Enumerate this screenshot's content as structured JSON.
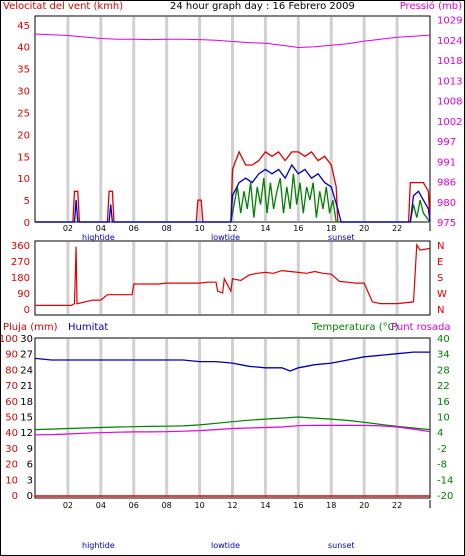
{
  "header": {
    "wind_label": "Velocitat del vent (kmh)",
    "title": "24 hour graph day : 16 Febrero 2009",
    "pressure_label": "Pressió (mb)"
  },
  "bottom_header": {
    "rain_label": "Pluja (mm)",
    "humidity_label": "Humitat",
    "temp_label": "Temperatura (°C)",
    "dew_label": "Punt rosada"
  },
  "hour_ticks": [
    "02",
    "04",
    "06",
    "08",
    "10",
    "12",
    "14",
    "16",
    "18",
    "20",
    "22"
  ],
  "markers": {
    "hightide": "hightide",
    "lowtide": "lowtide",
    "sunset": "sunset"
  },
  "colors": {
    "wind": "#e00000",
    "gust": "#0000c0",
    "avg": "#008000",
    "pressure": "#e000e0",
    "humidity": "#0000b0",
    "temperature": "#008000",
    "dew": "#e000e0",
    "rain": "#e00000"
  },
  "chart_data": [
    {
      "type": "line",
      "name": "wind-pressure",
      "x_range": [
        0,
        24
      ],
      "y_left": {
        "ticks": [
          "0",
          "5",
          "10",
          "15",
          "20",
          "25",
          "30",
          "35",
          "40",
          "45"
        ],
        "range": [
          0,
          47
        ]
      },
      "y_right": {
        "ticks": [
          "975",
          "980",
          "986",
          "991",
          "997",
          "1002",
          "1008",
          "1013",
          "1018",
          "1024",
          "1029"
        ],
        "range": [
          975,
          1030
        ]
      },
      "series": [
        {
          "key": "pressure",
          "x": [
            0,
            1,
            2,
            3,
            4,
            5,
            6,
            7,
            8,
            9,
            10,
            11,
            12,
            13,
            14,
            15,
            16,
            17,
            18,
            19,
            20,
            21,
            22,
            23,
            24
          ],
          "y": [
            1025.2,
            1025,
            1024.8,
            1024.4,
            1024,
            1023.8,
            1023.8,
            1023.7,
            1023.8,
            1023.8,
            1023.7,
            1023.5,
            1023.2,
            1022.9,
            1022.7,
            1022.2,
            1021.6,
            1021.8,
            1022.2,
            1022.6,
            1023.3,
            1023.8,
            1024.3,
            1024.6,
            1024.9
          ]
        },
        {
          "key": "wind",
          "x": [
            0,
            2.3,
            2.4,
            2.6,
            2.7,
            4.4,
            4.5,
            4.7,
            4.8,
            9.8,
            9.9,
            10.1,
            10.2,
            11.9,
            12.0,
            12.4,
            12.8,
            13.2,
            13.6,
            14.0,
            14.4,
            14.8,
            15.2,
            15.6,
            16.0,
            16.4,
            16.8,
            17.2,
            17.6,
            18.0,
            18.3,
            18.4,
            22.7,
            22.8,
            23.2,
            23.6,
            23.9,
            24
          ],
          "y": [
            0,
            0,
            7,
            7,
            0,
            0,
            7,
            7,
            0,
            0,
            5,
            5,
            0,
            0,
            12,
            16,
            13,
            13,
            14,
            16,
            15,
            16,
            14,
            16,
            16,
            15,
            16,
            14,
            15,
            13,
            8,
            0,
            0,
            9,
            9,
            9,
            7,
            0
          ]
        },
        {
          "key": "gust",
          "x": [
            0,
            2.4,
            2.5,
            2.6,
            4.5,
            4.6,
            4.7,
            11.9,
            12.0,
            12.4,
            12.8,
            13.2,
            13.6,
            14.0,
            14.4,
            14.8,
            15.2,
            15.6,
            16.0,
            16.4,
            16.8,
            17.2,
            17.6,
            18.0,
            18.4,
            18.6,
            22.8,
            23.0,
            23.3,
            23.6,
            23.9,
            24
          ],
          "y": [
            0,
            0,
            5,
            0,
            0,
            4,
            0,
            0,
            6,
            9,
            10,
            9,
            11,
            12,
            11,
            12,
            10,
            13,
            11,
            12,
            10,
            11,
            9,
            8,
            3,
            0,
            0,
            6,
            7,
            5,
            3,
            0
          ]
        },
        {
          "key": "avg",
          "x": [
            0,
            11.9,
            12.1,
            12.3,
            12.5,
            12.7,
            12.9,
            13.1,
            13.3,
            13.5,
            13.7,
            13.9,
            14.1,
            14.3,
            14.5,
            14.7,
            14.9,
            15.1,
            15.3,
            15.5,
            15.7,
            15.9,
            16.1,
            16.3,
            16.5,
            16.7,
            16.9,
            17.1,
            17.3,
            17.5,
            17.7,
            17.9,
            18.1,
            18.3,
            22.8,
            23.0,
            23.2,
            23.4,
            23.6,
            24
          ],
          "y": [
            0,
            0,
            4,
            8,
            2,
            7,
            3,
            9,
            1,
            8,
            4,
            10,
            2,
            9,
            3,
            7,
            10,
            2,
            8,
            3,
            11,
            4,
            9,
            2,
            8,
            5,
            9,
            1,
            7,
            3,
            8,
            2,
            5,
            0,
            0,
            4,
            1,
            5,
            2,
            0
          ]
        }
      ]
    },
    {
      "type": "line",
      "name": "wind-direction",
      "x_range": [
        0,
        24
      ],
      "y_left": {
        "ticks": [
          "0",
          "90",
          "180",
          "270",
          "360"
        ],
        "range": [
          0,
          370
        ]
      },
      "y_right": {
        "ticks": [
          "N",
          "W",
          "S",
          "E",
          "N"
        ]
      },
      "series": [
        {
          "key": "direction",
          "x": [
            0,
            2.2,
            2.4,
            2.5,
            2.55,
            2.6,
            3.5,
            4.0,
            4.4,
            5.5,
            5.9,
            6.0,
            7.5,
            8.0,
            9.6,
            10.0,
            10.5,
            11.0,
            11.1,
            11.4,
            11.5,
            11.9,
            12.0,
            12.5,
            13.0,
            13.5,
            14.0,
            14.5,
            15.0,
            15.5,
            16.0,
            16.5,
            17.0,
            17.5,
            18.0,
            18.5,
            19.0,
            19.5,
            20.0,
            20.5,
            21.0,
            22.0,
            23.0,
            23.2,
            23.4,
            24
          ],
          "y": [
            20,
            20,
            30,
            350,
            30,
            30,
            50,
            50,
            80,
            80,
            80,
            140,
            140,
            145,
            145,
            145,
            150,
            150,
            100,
            90,
            170,
            100,
            170,
            160,
            190,
            200,
            205,
            200,
            215,
            210,
            205,
            200,
            210,
            200,
            195,
            155,
            150,
            145,
            145,
            40,
            30,
            30,
            40,
            360,
            330,
            340
          ]
        }
      ]
    },
    {
      "type": "line",
      "name": "rain-humidity-temperature",
      "x_range": [
        0,
        24
      ],
      "y_left": {
        "ticks": [
          "0",
          "10",
          "20",
          "30",
          "40",
          "50",
          "60",
          "70",
          "80",
          "90",
          "100"
        ],
        "range": [
          0,
          100
        ]
      },
      "y_left_inner": {
        "ticks": [
          "0",
          "3",
          "6",
          "9",
          "12",
          "15",
          "18",
          "21",
          "24",
          "27",
          "30"
        ]
      },
      "y_right": {
        "ticks": [
          "-20",
          "-14",
          "-8",
          "-2",
          "4",
          "10",
          "16",
          "22",
          "28",
          "34",
          "40"
        ],
        "range": [
          -20,
          40
        ]
      },
      "series": [
        {
          "key": "humidity",
          "x": [
            0,
            1,
            2,
            3,
            4,
            5,
            6,
            7,
            8,
            9,
            10,
            11,
            12,
            13,
            14,
            15,
            15.5,
            16,
            17,
            18,
            19,
            20,
            21,
            22,
            23,
            24
          ],
          "y": [
            87,
            86,
            86,
            86,
            86,
            86,
            86,
            86,
            86,
            86,
            85,
            85,
            84,
            82,
            81,
            81,
            79,
            81,
            83,
            84,
            86,
            88,
            89,
            90,
            91,
            91
          ]
        },
        {
          "key": "temperature",
          "x": [
            0,
            1,
            2,
            3,
            4,
            5,
            6,
            7,
            8,
            9,
            10,
            11,
            12,
            13,
            14,
            15,
            16,
            17,
            18,
            19,
            20,
            21,
            22,
            23,
            24
          ],
          "y": [
            5.0,
            5.2,
            5.4,
            5.6,
            5.8,
            6.0,
            6.1,
            6.2,
            6.3,
            6.4,
            6.8,
            7.4,
            8.0,
            8.6,
            9.0,
            9.4,
            9.8,
            9.4,
            9.0,
            8.5,
            7.8,
            7.0,
            6.2,
            5.6,
            5.0
          ]
        },
        {
          "key": "dew",
          "x": [
            0,
            1,
            2,
            3,
            4,
            5,
            6,
            7,
            8,
            9,
            10,
            11,
            12,
            13,
            14,
            15,
            16,
            17,
            18,
            19,
            20,
            21,
            22,
            23,
            24
          ],
          "y": [
            3.0,
            3.1,
            3.3,
            3.6,
            3.8,
            4.0,
            4.1,
            4.1,
            4.2,
            4.4,
            4.6,
            5.0,
            5.4,
            5.6,
            5.8,
            6.0,
            6.5,
            6.6,
            6.6,
            6.6,
            6.6,
            6.4,
            6.0,
            5.2,
            4.2
          ]
        },
        {
          "key": "rain",
          "x": [
            0,
            24
          ],
          "y": [
            0,
            0
          ]
        }
      ]
    }
  ]
}
